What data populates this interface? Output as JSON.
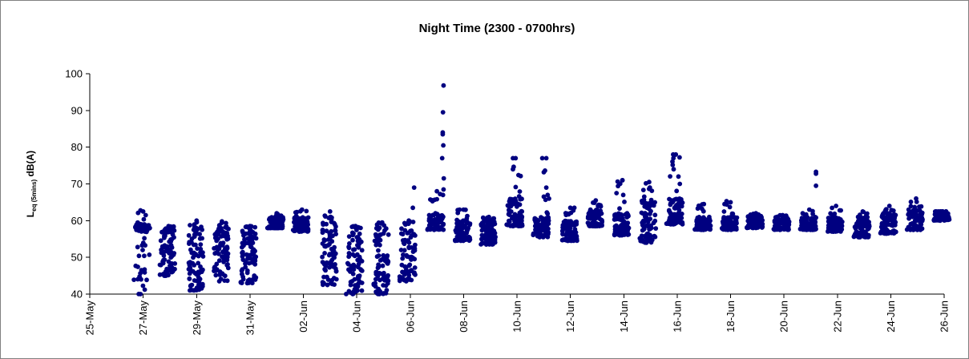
{
  "chart_data": {
    "type": "scatter",
    "title": "Night Time (2300 - 0700hrs)",
    "ylabel": {
      "main": "L",
      "subscript": "eq (5mins)",
      "unit": "dB(A)"
    },
    "xlabel": "",
    "ylim": [
      40,
      100
    ],
    "yticks": [
      40,
      50,
      60,
      70,
      80,
      90,
      100
    ],
    "xlim": [
      "25-May",
      "26-Jun"
    ],
    "xticks": [
      "25-May",
      "27-May",
      "29-May",
      "31-May",
      "02-Jun",
      "04-Jun",
      "06-Jun",
      "08-Jun",
      "10-Jun",
      "12-Jun",
      "14-Jun",
      "16-Jun",
      "18-Jun",
      "20-Jun",
      "22-Jun",
      "24-Jun",
      "26-Jun"
    ],
    "grid": false,
    "legend": "none",
    "marker_color": "#000080",
    "x_units": "days since 25-May (x value = day offset within the night period)",
    "nights": [
      {
        "night_of": "26-May",
        "x": 1.95,
        "min": 40,
        "max": 62.5,
        "typical": [
          57,
          59
        ],
        "outliers": [
          [
            1.9,
            62.8
          ],
          [
            1.98,
            52
          ],
          [
            1.92,
            44
          ]
        ]
      },
      {
        "night_of": "27-May",
        "x": 2.9,
        "min": 45,
        "max": 58.5,
        "typical": [
          48,
          58
        ],
        "outliers": []
      },
      {
        "night_of": "28-May",
        "x": 3.95,
        "min": 41,
        "max": 60,
        "typical": [
          45,
          58
        ],
        "outliers": []
      },
      {
        "night_of": "29-May",
        "x": 4.9,
        "min": 43.5,
        "max": 59.8,
        "typical": [
          50,
          58
        ],
        "outliers": []
      },
      {
        "night_of": "30-May",
        "x": 5.95,
        "min": 43,
        "max": 58.5,
        "typical": [
          48,
          58
        ],
        "outliers": []
      },
      {
        "night_of": "31-May",
        "x": 6.95,
        "min": 58,
        "max": 62,
        "typical": [
          58,
          61
        ],
        "outliers": []
      },
      {
        "night_of": "01-Jun",
        "x": 7.9,
        "min": 57,
        "max": 63,
        "typical": [
          58,
          61
        ],
        "outliers": []
      },
      {
        "night_of": "02-Jun",
        "x": 8.95,
        "min": 42.5,
        "max": 62.5,
        "typical": [
          48,
          60
        ],
        "outliers": [
          [
            8.9,
            42.5
          ]
        ]
      },
      {
        "night_of": "03-Jun",
        "x": 9.9,
        "min": 40,
        "max": 58.5,
        "typical": [
          44,
          58
        ],
        "outliers": []
      },
      {
        "night_of": "04-Jun",
        "x": 10.9,
        "min": 40,
        "max": 59.5,
        "typical": [
          44,
          58
        ],
        "outliers": []
      },
      {
        "night_of": "05-Jun",
        "x": 11.9,
        "min": 43.5,
        "max": 60,
        "typical": [
          46,
          58
        ],
        "outliers": [
          [
            12.15,
            69
          ],
          [
            12.1,
            63.5
          ]
        ]
      },
      {
        "night_of": "06-Jun",
        "x": 12.95,
        "min": 57.5,
        "max": 68,
        "typical": [
          58,
          62
        ],
        "outliers": [
          [
            13.25,
            96.8
          ],
          [
            13.23,
            89.5
          ],
          [
            13.22,
            84
          ],
          [
            13.22,
            83.5
          ],
          [
            13.24,
            80.5
          ],
          [
            13.2,
            77
          ],
          [
            13.26,
            71.5
          ],
          [
            13.25,
            68.5
          ],
          [
            13.23,
            67
          ]
        ]
      },
      {
        "night_of": "07-Jun",
        "x": 13.95,
        "min": 54.5,
        "max": 63,
        "typical": [
          55,
          60
        ],
        "outliers": [
          [
            13.85,
            63
          ]
        ]
      },
      {
        "night_of": "08-Jun",
        "x": 14.9,
        "min": 53.5,
        "max": 61,
        "typical": [
          55,
          60
        ],
        "outliers": []
      },
      {
        "night_of": "09-Jun",
        "x": 15.9,
        "min": 58.5,
        "max": 77,
        "typical": [
          59,
          66
        ],
        "outliers": [
          [
            15.85,
            77
          ],
          [
            15.85,
            74
          ]
        ]
      },
      {
        "night_of": "10-Jun",
        "x": 16.9,
        "min": 55.5,
        "max": 77,
        "typical": [
          57,
          61
        ],
        "outliers": [
          [
            17.1,
            77
          ],
          [
            17.1,
            69
          ],
          [
            17.15,
            67
          ],
          [
            17.2,
            66
          ]
        ]
      },
      {
        "night_of": "11-Jun",
        "x": 17.95,
        "min": 54.5,
        "max": 63.5,
        "typical": [
          55,
          60
        ],
        "outliers": [
          [
            18.15,
            63.5
          ]
        ]
      },
      {
        "night_of": "12-Jun",
        "x": 18.9,
        "min": 58.5,
        "max": 65.5,
        "typical": [
          59,
          63
        ],
        "outliers": []
      },
      {
        "night_of": "13-Jun",
        "x": 19.9,
        "min": 56,
        "max": 71,
        "typical": [
          57,
          62
        ],
        "outliers": [
          [
            19.95,
            71
          ],
          [
            19.98,
            67
          ]
        ]
      },
      {
        "night_of": "14-Jun",
        "x": 20.9,
        "min": 54,
        "max": 70.5,
        "typical": [
          56,
          66
        ],
        "outliers": []
      },
      {
        "night_of": "15-Jun",
        "x": 21.9,
        "min": 59,
        "max": 78,
        "typical": [
          60,
          66
        ],
        "outliers": [
          [
            21.85,
            78
          ],
          [
            21.86,
            77
          ],
          [
            21.87,
            74
          ],
          [
            22.05,
            72
          ],
          [
            22.1,
            70
          ]
        ]
      },
      {
        "night_of": "16-Jun",
        "x": 22.95,
        "min": 57.5,
        "max": 64.5,
        "typical": [
          58,
          61
        ],
        "outliers": []
      },
      {
        "night_of": "17-Jun",
        "x": 23.95,
        "min": 57.5,
        "max": 65,
        "typical": [
          58,
          61
        ],
        "outliers": [
          [
            23.85,
            65.3
          ]
        ]
      },
      {
        "night_of": "18-Jun",
        "x": 24.9,
        "min": 58,
        "max": 62,
        "typical": [
          58.5,
          61.5
        ],
        "outliers": []
      },
      {
        "night_of": "19-Jun",
        "x": 25.9,
        "min": 57.5,
        "max": 61.5,
        "typical": [
          58,
          61
        ],
        "outliers": []
      },
      {
        "night_of": "20-Jun",
        "x": 26.9,
        "min": 57.5,
        "max": 63,
        "typical": [
          58,
          61
        ],
        "outliers": [
          [
            27.2,
            73.3
          ],
          [
            27.2,
            72.8
          ],
          [
            27.2,
            69.5
          ]
        ]
      },
      {
        "night_of": "21-Jun",
        "x": 27.9,
        "min": 57,
        "max": 64,
        "typical": [
          58,
          61
        ],
        "outliers": []
      },
      {
        "night_of": "22-Jun",
        "x": 28.9,
        "min": 55.5,
        "max": 62.5,
        "typical": [
          56,
          61
        ],
        "outliers": []
      },
      {
        "night_of": "23-Jun",
        "x": 29.9,
        "min": 56.5,
        "max": 64,
        "typical": [
          57,
          62
        ],
        "outliers": []
      },
      {
        "night_of": "24-Jun",
        "x": 30.9,
        "min": 57.5,
        "max": 66,
        "typical": [
          58,
          63
        ],
        "outliers": []
      },
      {
        "night_of": "25-Jun",
        "x": 31.9,
        "min": 60,
        "max": 62.5,
        "typical": [
          60.5,
          62.5
        ],
        "outliers": []
      }
    ]
  }
}
